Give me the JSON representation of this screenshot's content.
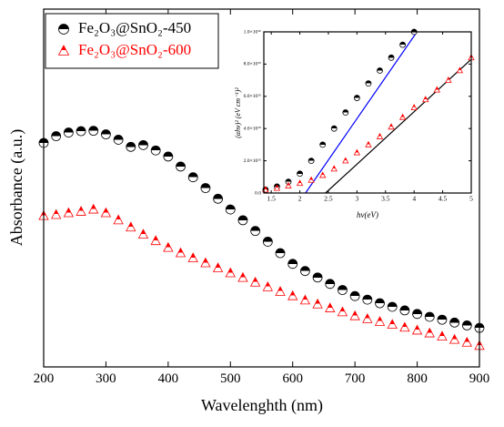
{
  "chart_data": [
    {
      "type": "scatter",
      "xlabel": "Wavelenghth (nm)",
      "ylabel": "Absorbance (a.u.)",
      "xlim": [
        200,
        900
      ],
      "xticks": [
        200,
        300,
        400,
        500,
        600,
        700,
        800,
        900
      ],
      "ylim": [
        0,
        1
      ],
      "legend": "upper left",
      "x": [
        200,
        220,
        240,
        260,
        280,
        300,
        320,
        340,
        360,
        380,
        400,
        420,
        440,
        460,
        480,
        500,
        520,
        540,
        560,
        580,
        600,
        620,
        640,
        660,
        680,
        700,
        720,
        740,
        760,
        780,
        800,
        820,
        840,
        860,
        880,
        900
      ],
      "series": [
        {
          "name": "Fe₂O₃@SnO₂-450",
          "color": "#000000",
          "marker": "circle",
          "values": [
            0.626,
            0.645,
            0.655,
            0.659,
            0.66,
            0.65,
            0.635,
            0.615,
            0.62,
            0.605,
            0.588,
            0.56,
            0.53,
            0.5,
            0.47,
            0.44,
            0.41,
            0.38,
            0.35,
            0.318,
            0.288,
            0.268,
            0.25,
            0.232,
            0.215,
            0.198,
            0.188,
            0.178,
            0.168,
            0.158,
            0.148,
            0.14,
            0.132,
            0.124,
            0.116,
            0.109
          ]
        },
        {
          "name": "Fe₂O₃@SnO₂-600",
          "color": "#ff0000",
          "marker": "triangle",
          "values": [
            0.422,
            0.425,
            0.43,
            0.434,
            0.44,
            0.43,
            0.41,
            0.39,
            0.37,
            0.352,
            0.333,
            0.318,
            0.304,
            0.29,
            0.276,
            0.262,
            0.249,
            0.236,
            0.223,
            0.21,
            0.198,
            0.186,
            0.175,
            0.164,
            0.153,
            0.142,
            0.134,
            0.126,
            0.118,
            0.11,
            0.102,
            0.094,
            0.085,
            0.076,
            0.068,
            0.059
          ]
        }
      ]
    },
    {
      "type": "scatter",
      "xlabel": "hν(eV)",
      "ylabel": "(αhν)² (eV cm⁻¹)²",
      "xlim": [
        1.37,
        5.0
      ],
      "xticks": [
        1.5,
        2.0,
        2.5,
        3.0,
        3.5,
        4.0,
        4.5,
        5.0
      ],
      "ylim": [
        0,
        1e+16
      ],
      "yticks": [
        {
          "value": 0,
          "label": "0.0"
        },
        {
          "value": 2000000000000000.0,
          "label": "2.0×10¹⁵"
        },
        {
          "value": 4000000000000000.0,
          "label": "4.0×10¹⁵"
        },
        {
          "value": 6000000000000000.0,
          "label": "6.0×10¹⁵"
        },
        {
          "value": 8000000000000000.0,
          "label": "8.0×10¹⁵"
        },
        {
          "value": 1e+16,
          "label": "1.0×10¹⁶"
        }
      ],
      "series": [
        {
          "color": "#000000",
          "marker": "circle",
          "x": [
            1.4,
            1.6,
            1.8,
            2.0,
            2.2,
            2.4,
            2.6,
            2.8,
            3.0,
            3.2,
            3.4,
            3.6,
            3.8,
            4.0
          ],
          "values": [
            200000000000000.0,
            400000000000000.0,
            700000000000000.0,
            1200000000000000.0,
            2000000000000000.0,
            3000000000000000.0,
            4000000000000000.0,
            5000000000000000.0,
            5900000000000000.0,
            6800000000000000.0,
            7600000000000000.0,
            8400000000000000.0,
            9200000000000000.0,
            1e+16
          ]
        },
        {
          "color": "#ff0000",
          "marker": "triangle",
          "x": [
            1.4,
            1.6,
            1.8,
            2.0,
            2.2,
            2.4,
            2.6,
            2.8,
            3.0,
            3.2,
            3.4,
            3.6,
            3.8,
            4.0,
            4.2,
            4.4,
            4.6,
            4.8,
            5.0
          ],
          "values": [
            200000000000000.0,
            300000000000000.0,
            450000000000000.0,
            600000000000000.0,
            800000000000000.0,
            1100000000000000.0,
            1500000000000000.0,
            2000000000000000.0,
            2500000000000000.0,
            3000000000000000.0,
            3500000000000000.0,
            4100000000000000.0,
            4700000000000000.0,
            5300000000000000.0,
            5800000000000000.0,
            6400000000000000.0,
            7000000000000000.0,
            7600000000000000.0,
            8400000000000000.0
          ]
        }
      ],
      "fit_lines": [
        {
          "color": "#0000ff",
          "x": [
            2.1,
            4.05
          ],
          "values": [
            0,
            1e+16
          ]
        },
        {
          "color": "#000000",
          "x": [
            2.45,
            5.0
          ],
          "values": [
            0,
            8300000000000000.0
          ]
        }
      ]
    }
  ]
}
